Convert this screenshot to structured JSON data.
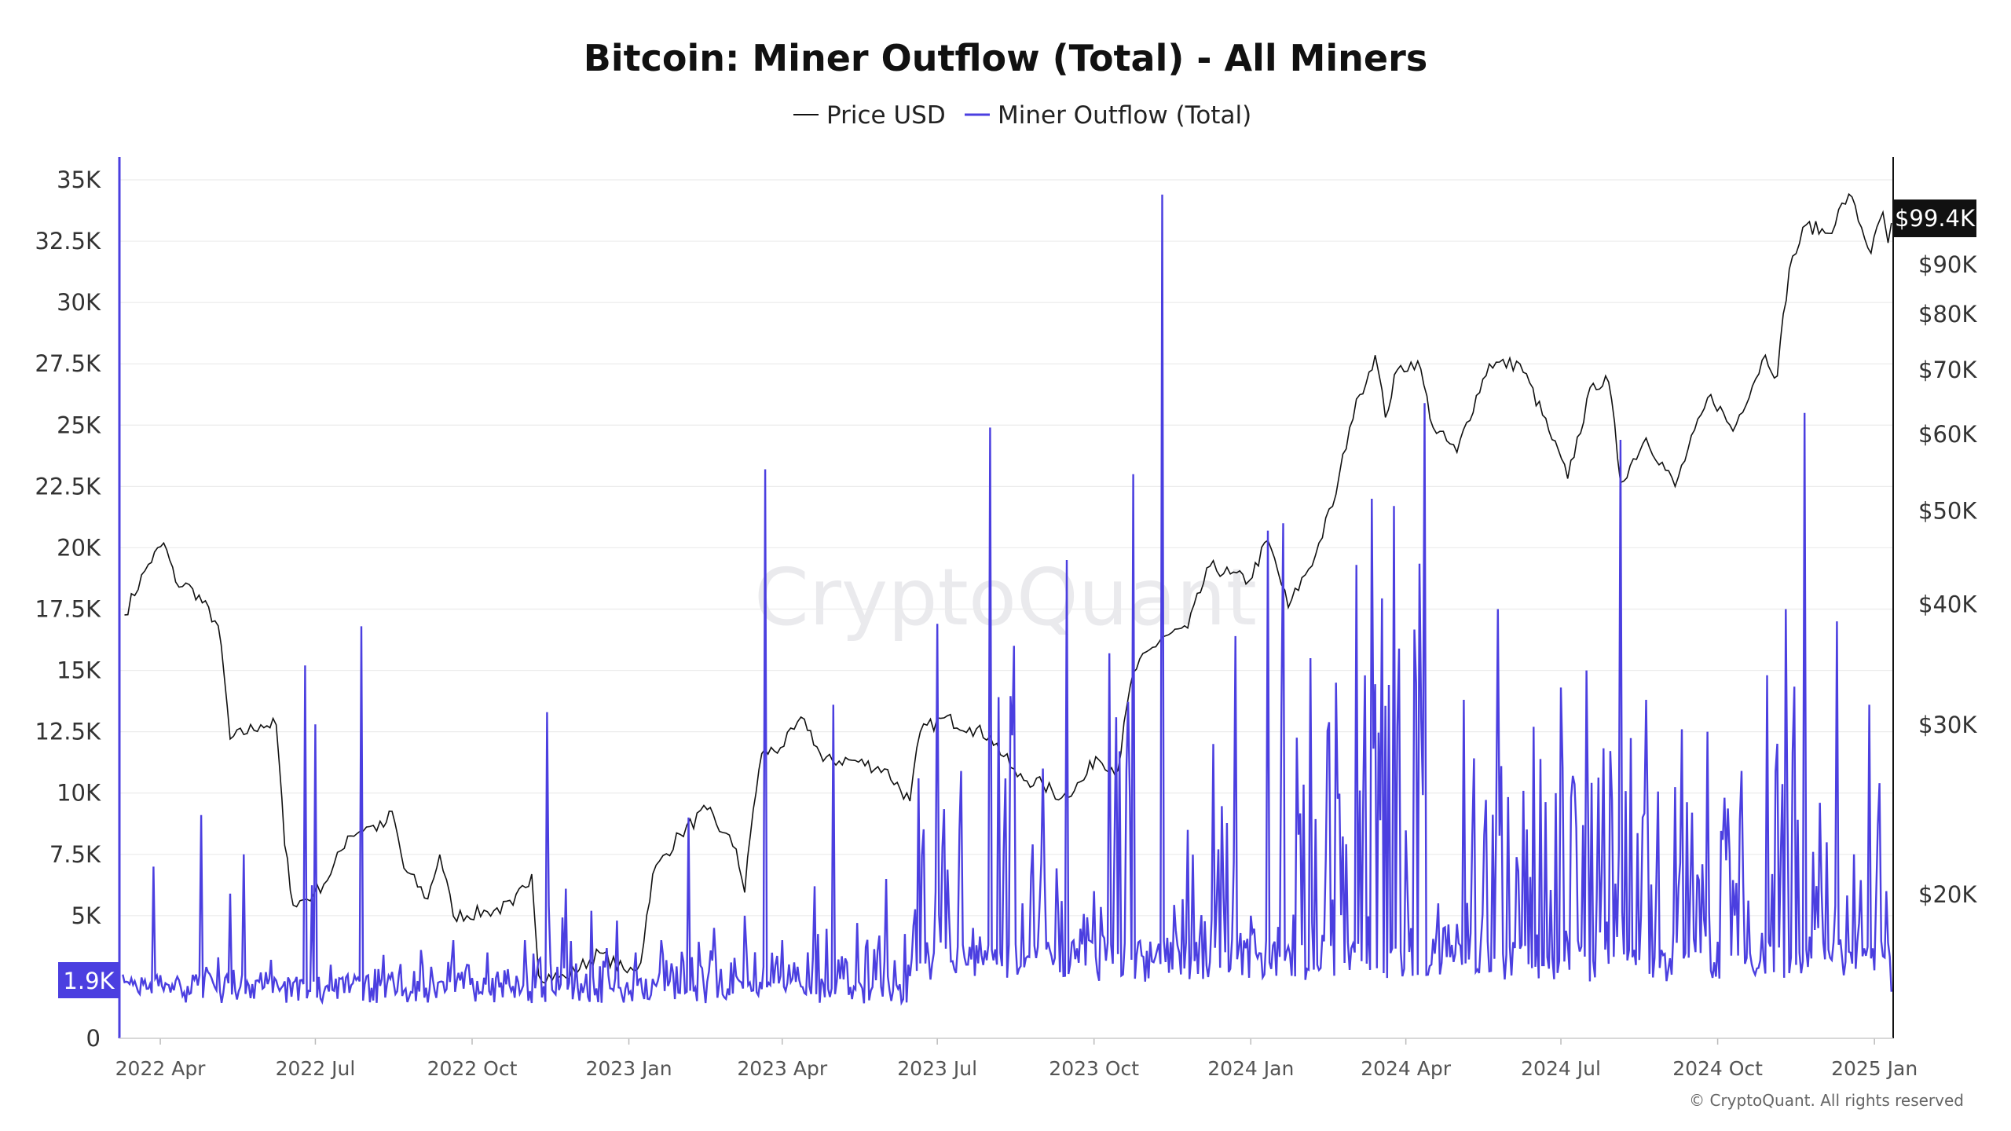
{
  "chart_data": {
    "type": "line",
    "title": "Bitcoin: Miner Outflow (Total) - All Miners",
    "legend_position": "top-center",
    "grid": true,
    "watermark": "CryptoQuant",
    "copyright": "© CryptoQuant. All rights reserved",
    "colors": {
      "price": "#111111",
      "outflow": "#4b3fe0",
      "badge_right": "#111111",
      "badge_left": "#4b3fe0"
    },
    "x_axis": {
      "range": [
        "2022-03-08",
        "2025-01-12"
      ],
      "ticks": [
        {
          "date": "2022-04-01",
          "label": "2022 Apr"
        },
        {
          "date": "2022-07-01",
          "label": "2022 Jul"
        },
        {
          "date": "2022-10-01",
          "label": "2022 Oct"
        },
        {
          "date": "2023-01-01",
          "label": "2023 Jan"
        },
        {
          "date": "2023-04-01",
          "label": "2023 Apr"
        },
        {
          "date": "2023-07-01",
          "label": "2023 Jul"
        },
        {
          "date": "2023-10-01",
          "label": "2023 Oct"
        },
        {
          "date": "2024-01-01",
          "label": "2024 Jan"
        },
        {
          "date": "2024-04-01",
          "label": "2024 Apr"
        },
        {
          "date": "2024-07-01",
          "label": "2024 Jul"
        },
        {
          "date": "2024-10-01",
          "label": "2024 Oct"
        },
        {
          "date": "2025-01-01",
          "label": "2025 Jan"
        }
      ]
    },
    "y_left": {
      "range": [
        0,
        35000
      ],
      "ticks": [
        {
          "value": 0,
          "label": "0"
        },
        {
          "value": 5000,
          "label": "5K"
        },
        {
          "value": 7500,
          "label": "7.5K"
        },
        {
          "value": 10000,
          "label": "10K"
        },
        {
          "value": 12500,
          "label": "12.5K"
        },
        {
          "value": 15000,
          "label": "15K"
        },
        {
          "value": 17500,
          "label": "17.5K"
        },
        {
          "value": 20000,
          "label": "20K"
        },
        {
          "value": 22500,
          "label": "22.5K"
        },
        {
          "value": 25000,
          "label": "25K"
        },
        {
          "value": 27500,
          "label": "27.5K"
        },
        {
          "value": 30000,
          "label": "30K"
        },
        {
          "value": 32500,
          "label": "32.5K"
        },
        {
          "value": 35000,
          "label": "35K"
        }
      ],
      "current_label": "1.9K"
    },
    "y_right": {
      "scale": "log",
      "ticks": [
        {
          "value": 20000,
          "label": "$20K"
        },
        {
          "value": 30000,
          "label": "$30K"
        },
        {
          "value": 40000,
          "label": "$40K"
        },
        {
          "value": 50000,
          "label": "$50K"
        },
        {
          "value": 60000,
          "label": "$60K"
        },
        {
          "value": 70000,
          "label": "$70K"
        },
        {
          "value": 80000,
          "label": "$80K"
        },
        {
          "value": 90000,
          "label": "$90K"
        }
      ],
      "current_label": "$99.4K"
    },
    "series": [
      {
        "name": "Price USD",
        "axis": "right",
        "points": [
          [
            "2022-03-11",
            39000
          ],
          [
            "2022-03-25",
            44000
          ],
          [
            "2022-04-03",
            46300
          ],
          [
            "2022-04-10",
            42200
          ],
          [
            "2022-04-20",
            41500
          ],
          [
            "2022-05-05",
            38000
          ],
          [
            "2022-05-12",
            29000
          ],
          [
            "2022-05-30",
            30000
          ],
          [
            "2022-06-08",
            30000
          ],
          [
            "2022-06-13",
            22500
          ],
          [
            "2022-06-18",
            19500
          ],
          [
            "2022-06-30",
            20000
          ],
          [
            "2022-07-10",
            21000
          ],
          [
            "2022-07-20",
            23000
          ],
          [
            "2022-07-31",
            23500
          ],
          [
            "2022-08-10",
            23500
          ],
          [
            "2022-08-15",
            24400
          ],
          [
            "2022-08-22",
            21300
          ],
          [
            "2022-09-05",
            19800
          ],
          [
            "2022-09-12",
            22000
          ],
          [
            "2022-09-20",
            19000
          ],
          [
            "2022-10-10",
            19200
          ],
          [
            "2022-10-25",
            19500
          ],
          [
            "2022-11-05",
            21000
          ],
          [
            "2022-11-09",
            16500
          ],
          [
            "2022-11-25",
            16400
          ],
          [
            "2022-12-15",
            17400
          ],
          [
            "2022-12-31",
            16600
          ],
          [
            "2023-01-08",
            17000
          ],
          [
            "2023-01-15",
            21000
          ],
          [
            "2023-01-31",
            23100
          ],
          [
            "2023-02-16",
            24500
          ],
          [
            "2023-02-25",
            23200
          ],
          [
            "2023-03-05",
            22300
          ],
          [
            "2023-03-10",
            20100
          ],
          [
            "2023-03-15",
            24500
          ],
          [
            "2023-03-20",
            28000
          ],
          [
            "2023-03-31",
            28400
          ],
          [
            "2023-04-14",
            30400
          ],
          [
            "2023-04-25",
            27500
          ],
          [
            "2023-05-10",
            27600
          ],
          [
            "2023-05-31",
            27000
          ],
          [
            "2023-06-15",
            25000
          ],
          [
            "2023-06-21",
            29500
          ],
          [
            "2023-07-05",
            30500
          ],
          [
            "2023-07-20",
            29800
          ],
          [
            "2023-08-01",
            29200
          ],
          [
            "2023-08-17",
            26500
          ],
          [
            "2023-09-01",
            26000
          ],
          [
            "2023-09-12",
            25200
          ],
          [
            "2023-09-25",
            26300
          ],
          [
            "2023-10-02",
            27800
          ],
          [
            "2023-10-15",
            26900
          ],
          [
            "2023-10-24",
            34000
          ],
          [
            "2023-11-10",
            37000
          ],
          [
            "2023-11-25",
            37800
          ],
          [
            "2023-12-08",
            43800
          ],
          [
            "2023-12-20",
            43000
          ],
          [
            "2023-12-31",
            42300
          ],
          [
            "2024-01-11",
            46600
          ],
          [
            "2024-01-23",
            39700
          ],
          [
            "2024-02-08",
            45000
          ],
          [
            "2024-02-20",
            52000
          ],
          [
            "2024-02-28",
            61000
          ],
          [
            "2024-03-05",
            66000
          ],
          [
            "2024-03-14",
            72500
          ],
          [
            "2024-03-20",
            62500
          ],
          [
            "2024-03-27",
            70000
          ],
          [
            "2024-04-08",
            71500
          ],
          [
            "2024-04-17",
            61000
          ],
          [
            "2024-05-01",
            57500
          ],
          [
            "2024-05-20",
            71000
          ],
          [
            "2024-06-07",
            71000
          ],
          [
            "2024-06-24",
            60500
          ],
          [
            "2024-07-05",
            54000
          ],
          [
            "2024-07-20",
            67800
          ],
          [
            "2024-07-29",
            68000
          ],
          [
            "2024-08-05",
            53500
          ],
          [
            "2024-08-20",
            59500
          ],
          [
            "2024-09-06",
            53000
          ],
          [
            "2024-09-27",
            66000
          ],
          [
            "2024-10-10",
            60500
          ],
          [
            "2024-10-29",
            72500
          ],
          [
            "2024-11-05",
            69000
          ],
          [
            "2024-11-12",
            89000
          ],
          [
            "2024-11-22",
            99000
          ],
          [
            "2024-12-05",
            97000
          ],
          [
            "2024-12-17",
            106500
          ],
          [
            "2024-12-30",
            92500
          ],
          [
            "2025-01-06",
            102000
          ],
          [
            "2025-01-09",
            94800
          ],
          [
            "2025-01-11",
            99400
          ]
        ]
      },
      {
        "name": "Miner Outflow (Total)",
        "axis": "left",
        "points": [
          [
            "2022-03-10",
            2600
          ],
          [
            "2022-03-20",
            1800
          ],
          [
            "2022-03-28",
            7000
          ],
          [
            "2022-04-05",
            2200
          ],
          [
            "2022-04-25",
            9100
          ],
          [
            "2022-05-05",
            3300
          ],
          [
            "2022-05-12",
            5900
          ],
          [
            "2022-05-20",
            7500
          ],
          [
            "2022-06-05",
            3200
          ],
          [
            "2022-06-20",
            2500
          ],
          [
            "2022-06-25",
            15200
          ],
          [
            "2022-07-01",
            12800
          ],
          [
            "2022-07-10",
            3000
          ],
          [
            "2022-07-20",
            2600
          ],
          [
            "2022-07-28",
            16800
          ],
          [
            "2022-08-10",
            3400
          ],
          [
            "2022-09-01",
            3600
          ],
          [
            "2022-09-20",
            4000
          ],
          [
            "2022-10-10",
            3500
          ],
          [
            "2022-11-01",
            4000
          ],
          [
            "2022-11-14",
            13300
          ],
          [
            "2022-11-25",
            6100
          ],
          [
            "2022-12-10",
            5200
          ],
          [
            "2022-12-25",
            4800
          ],
          [
            "2023-01-05",
            3500
          ],
          [
            "2023-01-20",
            4000
          ],
          [
            "2023-02-05",
            9000
          ],
          [
            "2023-02-20",
            4500
          ],
          [
            "2023-03-10",
            5000
          ],
          [
            "2023-03-22",
            23200
          ],
          [
            "2023-04-01",
            4000
          ],
          [
            "2023-04-20",
            6200
          ],
          [
            "2023-05-01",
            13600
          ],
          [
            "2023-05-15",
            4700
          ],
          [
            "2023-06-01",
            6500
          ],
          [
            "2023-06-20",
            10600
          ],
          [
            "2023-07-01",
            16900
          ],
          [
            "2023-07-15",
            10900
          ],
          [
            "2023-07-22",
            4500
          ],
          [
            "2023-08-01",
            24900
          ],
          [
            "2023-08-15",
            16000
          ],
          [
            "2023-09-01",
            11000
          ],
          [
            "2023-09-15",
            19500
          ],
          [
            "2023-10-01",
            6000
          ],
          [
            "2023-10-10",
            15700
          ],
          [
            "2023-10-24",
            23000
          ],
          [
            "2023-11-05",
            3100
          ],
          [
            "2023-11-10",
            34400
          ],
          [
            "2023-11-25",
            8500
          ],
          [
            "2023-12-10",
            12000
          ],
          [
            "2023-12-23",
            16400
          ],
          [
            "2024-01-01",
            5000
          ],
          [
            "2024-01-11",
            20700
          ],
          [
            "2024-01-20",
            21000
          ],
          [
            "2024-02-05",
            15500
          ],
          [
            "2024-02-20",
            14500
          ],
          [
            "2024-03-03",
            19300
          ],
          [
            "2024-03-12",
            22000
          ],
          [
            "2024-03-25",
            21700
          ],
          [
            "2024-04-12",
            25900
          ],
          [
            "2024-04-20",
            5500
          ],
          [
            "2024-05-05",
            13800
          ],
          [
            "2024-05-25",
            17500
          ],
          [
            "2024-06-15",
            12700
          ],
          [
            "2024-07-01",
            14300
          ],
          [
            "2024-07-16",
            15000
          ],
          [
            "2024-08-05",
            24400
          ],
          [
            "2024-08-20",
            13800
          ],
          [
            "2024-09-10",
            12600
          ],
          [
            "2024-09-25",
            12500
          ],
          [
            "2024-10-15",
            10900
          ],
          [
            "2024-10-30",
            14800
          ],
          [
            "2024-11-10",
            17500
          ],
          [
            "2024-11-21",
            25500
          ],
          [
            "2024-11-30",
            9600
          ],
          [
            "2024-12-10",
            17000
          ],
          [
            "2024-12-20",
            7500
          ],
          [
            "2024-12-29",
            13600
          ],
          [
            "2025-01-04",
            10400
          ],
          [
            "2025-01-08",
            6000
          ],
          [
            "2025-01-11",
            1900
          ]
        ]
      }
    ]
  }
}
